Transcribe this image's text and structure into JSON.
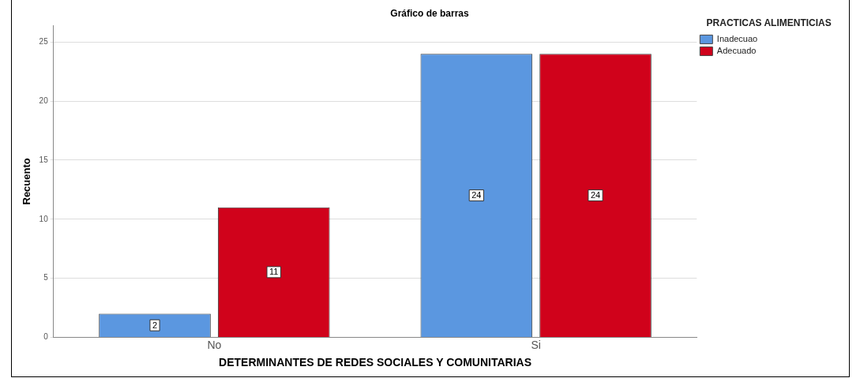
{
  "chart_data": {
    "type": "bar",
    "title": "Gráfico de barras",
    "xlabel": "DETERMINANTES DE REDES SOCIALES Y COMUNITARIAS",
    "ylabel": "Recuento",
    "legend_title": "PRACTICAS ALIMENTICIAS",
    "categories": [
      "No",
      "Si"
    ],
    "series": [
      {
        "name": "Inadecuao",
        "color": "#5b97e0",
        "values": [
          2,
          24
        ]
      },
      {
        "name": "Adecuado",
        "color": "#d0021b",
        "values": [
          11,
          24
        ]
      }
    ],
    "ylim": [
      0,
      26.4
    ],
    "yticks": [
      0,
      5,
      10,
      15,
      20,
      25
    ],
    "grid": "y",
    "legend": "top right",
    "data_labels": true
  }
}
